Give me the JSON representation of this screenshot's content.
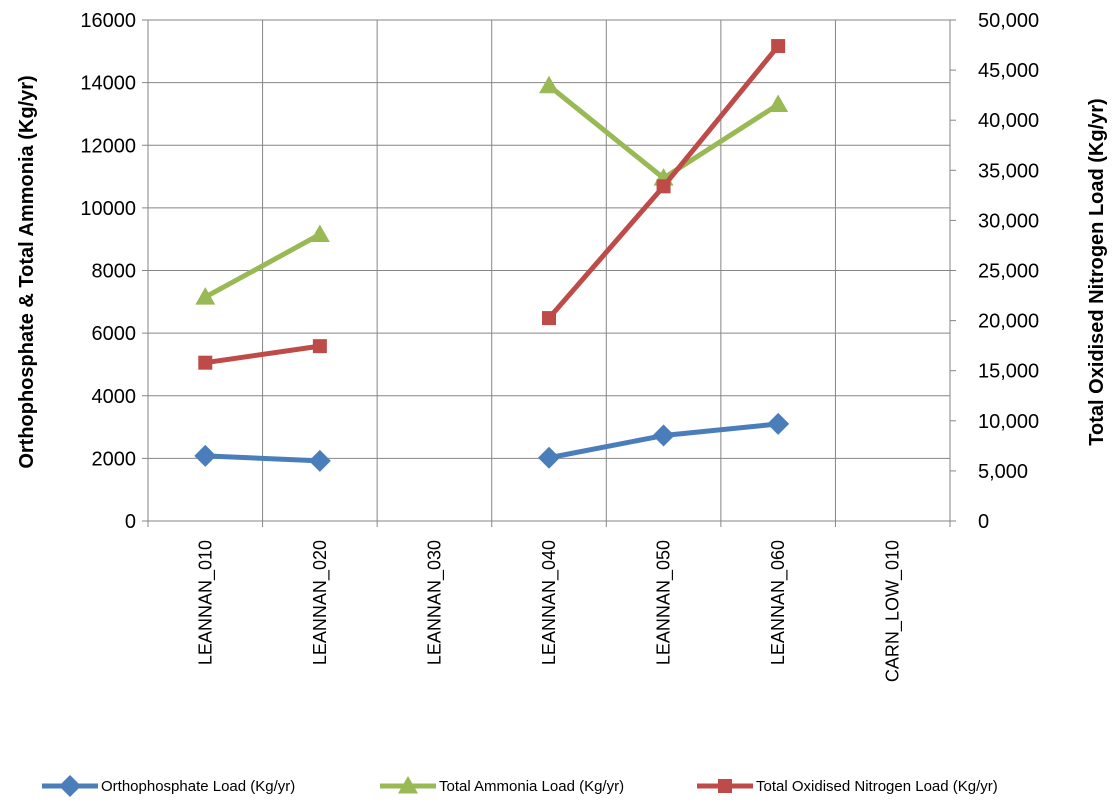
{
  "chart_data": {
    "type": "line",
    "categories": [
      "LEANNAN_010",
      "LEANNAN_020",
      "LEANNAN_030",
      "LEANNAN_040",
      "LEANNAN_050",
      "LEANNAN_060",
      "CARN_LOW_010"
    ],
    "ylabel": "Orthophosphate & Total Ammonia (Kg/yr)",
    "y2label": "Total Oxidised Nitrogen Load (Kg/yr)",
    "ylim": [
      0,
      16000
    ],
    "y2lim": [
      0,
      50000
    ],
    "yticks": [
      "0",
      "2000",
      "4000",
      "6000",
      "8000",
      "10000",
      "12000",
      "14000",
      "16000"
    ],
    "y2ticks": [
      "0",
      "5,000",
      "10,000",
      "15,000",
      "20,000",
      "25,000",
      "30,000",
      "35,000",
      "40,000",
      "45,000",
      "50,000"
    ],
    "grid": true,
    "legend_position": "bottom",
    "series": [
      {
        "name": "Orthophosphate Load (Kg/yr)",
        "axis": "left",
        "marker": "diamond",
        "color": "#4a7ebb",
        "values": [
          2080,
          1920,
          null,
          2020,
          2730,
          3100,
          null
        ]
      },
      {
        "name": "Total Ammonia Load (Kg/yr)",
        "axis": "left",
        "marker": "triangle",
        "color": "#98b954",
        "values": [
          7150,
          9150,
          null,
          13900,
          10950,
          13300,
          null
        ]
      },
      {
        "name": "Total Oxidised Nitrogen Load (Kg/yr)",
        "axis": "right",
        "marker": "square",
        "color": "#be4b48",
        "values": [
          15800,
          17450,
          null,
          20250,
          33400,
          47400,
          null
        ]
      }
    ]
  }
}
